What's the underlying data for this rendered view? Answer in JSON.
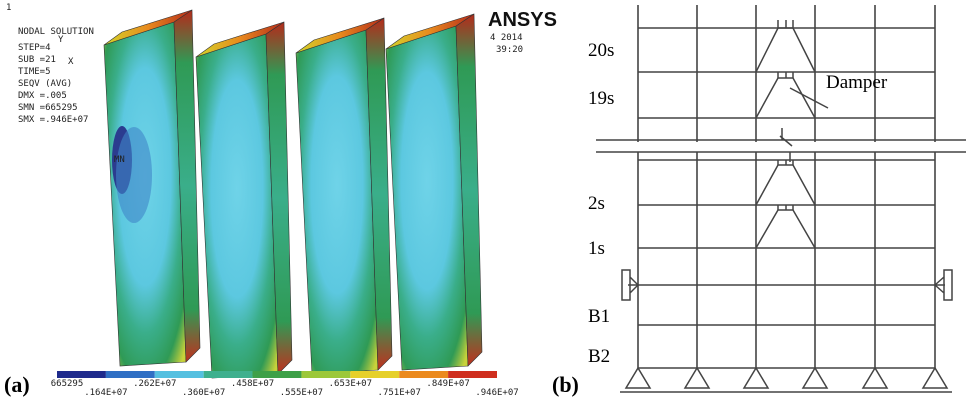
{
  "panel_a": {
    "label": "(a)",
    "corner": "1",
    "info": [
      "NODAL SOLUTION",
      "STEP=4",
      "SUB =21",
      "TIME=5",
      "SEQV    (AVG)",
      "DMX =.005",
      "SMN =665295",
      "SMX =.946E+07"
    ],
    "logo": "ANSYS",
    "date": "4 2014",
    "time": "39:20",
    "triad": [
      "Y",
      "X"
    ],
    "marker": "MN",
    "colorbar_labels": [
      "665295",
      ".164E+07",
      ".262E+07",
      ".360E+07",
      ".458E+07",
      ".555E+07",
      ".653E+07",
      ".751E+07",
      ".849E+07",
      ".946E+07"
    ]
  },
  "panel_b": {
    "label": "(b)",
    "floor_labels": [
      "20s",
      "19s",
      "2s",
      "1s",
      "B1",
      "B2"
    ],
    "callout": "Damper"
  }
}
